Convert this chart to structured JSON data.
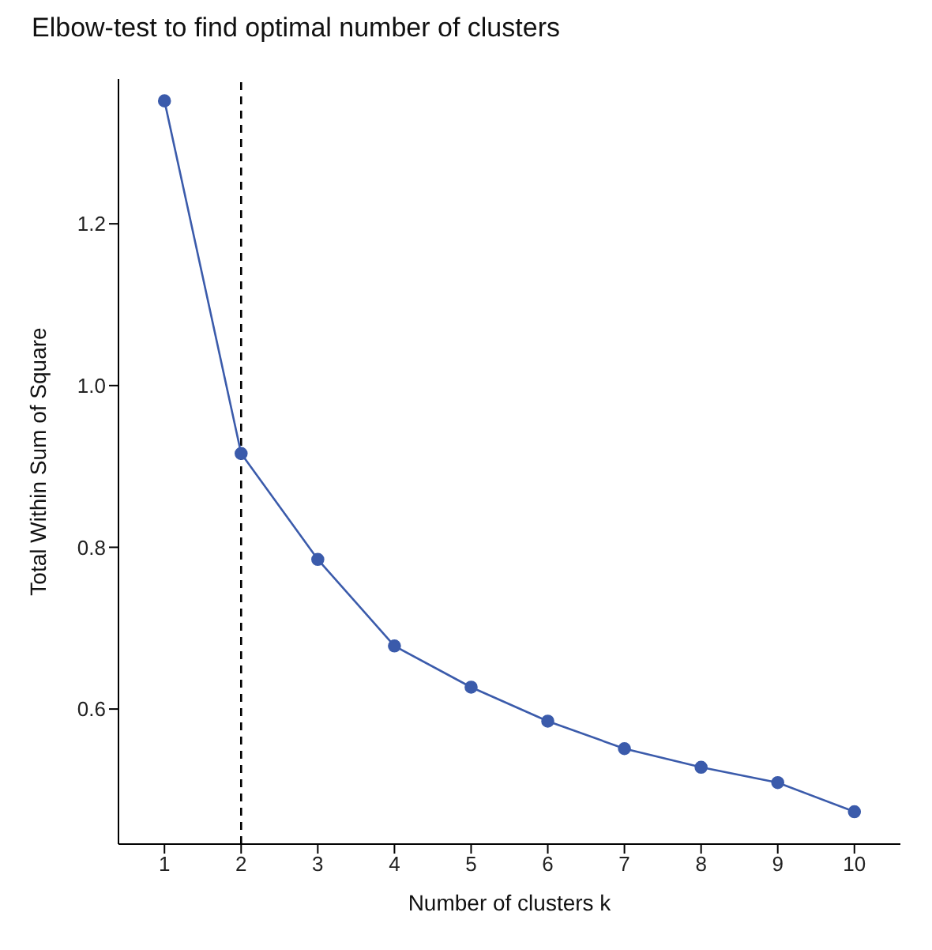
{
  "chart_data": {
    "type": "line",
    "title": "Elbow-test to find optimal number of clusters",
    "xlabel": "Number of clusters k",
    "ylabel": "Total Within Sum of Square",
    "x": [
      1,
      2,
      3,
      4,
      5,
      6,
      7,
      8,
      9,
      10
    ],
    "series": [
      {
        "color": "#3b5bab",
        "values": [
          1.352,
          0.916,
          0.785,
          0.678,
          0.627,
          0.585,
          0.551,
          0.528,
          0.509,
          0.473
        ]
      }
    ],
    "xlim": [
      0.4,
      10.6
    ],
    "xticks": [
      1,
      2,
      3,
      4,
      5,
      6,
      7,
      8,
      9,
      10
    ],
    "ylim": [
      0.433,
      1.379
    ],
    "yticks": [
      0.6,
      0.8,
      {
        "value": 1,
        "label": "1.0"
      },
      1.2
    ],
    "ref_lines": [
      {
        "axis": "x",
        "value": 2,
        "color": "#000000",
        "line_style": "dashed"
      }
    ],
    "grid": false,
    "marker": "circle",
    "line_style": "solid"
  }
}
